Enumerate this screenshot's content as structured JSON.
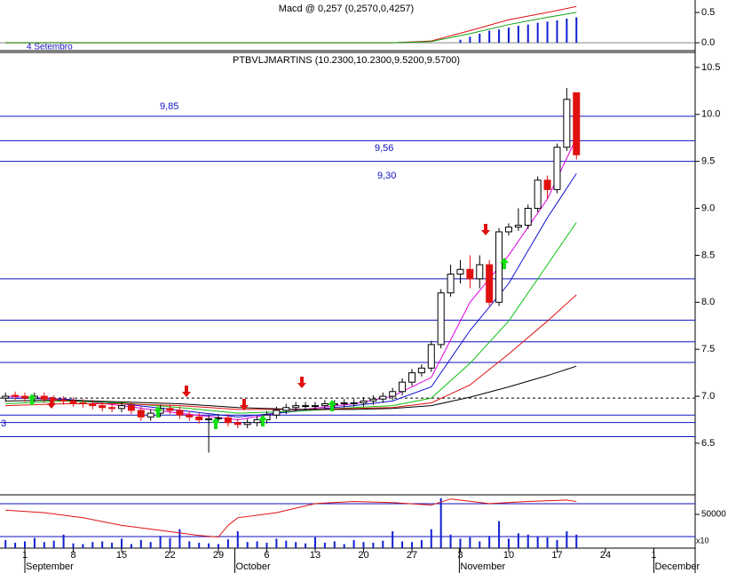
{
  "chart_data": {
    "type": "candlestick",
    "title": "PTBVLJMARTINS (10.2300,10.2300,9.5200,9.5700)",
    "top_title": "Macd @ 0,257 (0,2570,0,4257)",
    "top_label": "4 Setembro",
    "x": [
      -2,
      -1,
      0,
      1,
      2,
      3,
      4,
      5,
      6,
      7,
      8,
      9,
      10,
      11,
      12,
      13,
      14,
      15,
      16,
      17,
      18,
      19,
      20,
      21,
      22,
      23,
      24,
      25,
      26,
      27,
      28,
      29,
      30,
      31,
      32,
      33,
      34,
      35,
      36,
      37,
      38,
      39,
      40,
      41,
      42,
      43,
      44,
      45,
      46,
      47,
      48,
      49,
      50,
      51,
      52,
      53,
      54,
      55,
      56,
      57
    ],
    "open": [
      6.98,
      7.01,
      7.0,
      6.98,
      7.0,
      6.97,
      6.96,
      6.95,
      6.93,
      6.92,
      6.9,
      6.88,
      6.87,
      6.9,
      6.85,
      6.78,
      6.82,
      6.87,
      6.85,
      6.8,
      6.78,
      6.75,
      6.76,
      6.77,
      6.72,
      6.7,
      6.72,
      6.75,
      6.8,
      6.85,
      6.88,
      6.9,
      6.9,
      6.9,
      6.92,
      6.92,
      6.93,
      6.93,
      6.95,
      6.97,
      7.0,
      7.05,
      7.15,
      7.25,
      7.3,
      7.55,
      8.1,
      8.3,
      8.35,
      8.25,
      8.4,
      8.0,
      8.75,
      8.8,
      8.82,
      9.0,
      9.3,
      9.2,
      9.65,
      10.23
    ],
    "high": [
      7.04,
      7.05,
      7.04,
      7.04,
      7.04,
      7.01,
      7.0,
      6.99,
      6.97,
      6.96,
      6.94,
      6.92,
      6.94,
      6.94,
      6.89,
      6.86,
      6.91,
      6.91,
      6.89,
      6.84,
      6.82,
      6.8,
      6.81,
      6.81,
      6.76,
      6.76,
      6.79,
      6.84,
      6.89,
      6.92,
      6.94,
      6.94,
      6.94,
      6.96,
      6.96,
      6.97,
      6.97,
      6.99,
      7.01,
      7.04,
      7.09,
      7.19,
      7.29,
      7.34,
      7.59,
      8.14,
      8.4,
      8.45,
      8.5,
      8.5,
      8.45,
      8.79,
      8.84,
      9.0,
      9.04,
      9.34,
      9.35,
      9.69,
      10.28,
      10.23
    ],
    "low": [
      6.94,
      6.96,
      6.94,
      6.94,
      6.93,
      6.92,
      6.91,
      6.89,
      6.88,
      6.86,
      6.84,
      6.83,
      6.83,
      6.81,
      6.74,
      6.74,
      6.78,
      6.81,
      6.76,
      6.74,
      6.71,
      6.4,
      6.72,
      6.68,
      6.66,
      6.66,
      6.68,
      6.71,
      6.76,
      6.81,
      6.84,
      6.86,
      6.86,
      6.86,
      6.88,
      6.88,
      6.89,
      6.89,
      6.91,
      6.93,
      6.96,
      7.01,
      7.11,
      7.21,
      7.26,
      7.51,
      8.06,
      8.2,
      8.15,
      8.15,
      7.96,
      7.96,
      8.71,
      8.76,
      8.78,
      8.96,
      9.1,
      9.16,
      9.61,
      9.52
    ],
    "close": [
      7.0,
      7.0,
      6.98,
      7.0,
      6.97,
      6.96,
      6.95,
      6.93,
      6.92,
      6.9,
      6.88,
      6.87,
      6.9,
      6.85,
      6.78,
      6.82,
      6.87,
      6.85,
      6.8,
      6.78,
      6.75,
      6.76,
      6.77,
      6.72,
      6.7,
      6.72,
      6.75,
      6.8,
      6.85,
      6.88,
      6.9,
      6.9,
      6.9,
      6.92,
      6.92,
      6.93,
      6.93,
      6.95,
      6.97,
      7.0,
      7.05,
      7.15,
      7.25,
      7.3,
      7.55,
      8.1,
      8.3,
      8.35,
      8.25,
      8.4,
      8.0,
      8.75,
      8.8,
      8.82,
      9.0,
      9.3,
      9.2,
      9.65,
      10.16,
      9.57
    ],
    "up_color": "#ffffff",
    "down_color": "#e01010",
    "volume": [
      12000,
      8000,
      10000,
      15000,
      9000,
      11000,
      20000,
      7000,
      6000,
      9000,
      10000,
      8000,
      14000,
      6000,
      12000,
      9000,
      18000,
      15000,
      28000,
      10000,
      8000,
      7000,
      6000,
      13000,
      25000,
      9000,
      10000,
      8000,
      14000,
      11000,
      9000,
      7000,
      16000,
      8000,
      10000,
      6000,
      12000,
      9000,
      8000,
      11000,
      25000,
      10000,
      9000,
      12000,
      28000,
      74000,
      20000,
      14000,
      16000,
      10000,
      18000,
      40000,
      14000,
      22000,
      20000,
      17000,
      16000,
      12000,
      25000,
      20000
    ],
    "volume_color": "#1020d0",
    "xlim": [
      -2.57,
      69.27
    ],
    "xticks": [
      {
        "value": 0,
        "label": "1"
      },
      {
        "value": 5,
        "label": "8"
      },
      {
        "value": 10,
        "label": "15"
      },
      {
        "value": 15,
        "label": "22"
      },
      {
        "value": 20,
        "label": "29"
      },
      {
        "value": 25,
        "label": "6"
      },
      {
        "value": 30,
        "label": "13"
      },
      {
        "value": 35,
        "label": "20"
      },
      {
        "value": 40,
        "label": "27"
      },
      {
        "value": 45,
        "label": "3"
      },
      {
        "value": 50,
        "label": "10"
      },
      {
        "value": 55,
        "label": "17"
      },
      {
        "value": 60,
        "label": "24"
      },
      {
        "value": 65,
        "label": "1"
      }
    ],
    "months": [
      {
        "value": 0,
        "label": "September"
      },
      {
        "value": 21.7,
        "label": "October"
      },
      {
        "value": 44.9,
        "label": "November"
      },
      {
        "value": 65,
        "label": "December"
      }
    ],
    "ylim": [
      5.97,
      10.65
    ],
    "yticks": [
      6.5,
      {
        "value": 7,
        "label": "7.0"
      },
      7.5,
      {
        "value": 8,
        "label": "8.0"
      },
      8.5,
      {
        "value": 9,
        "label": "9.0"
      },
      9.5,
      {
        "value": 10,
        "label": "10.0"
      },
      10.5
    ],
    "levels": [
      9.98,
      9.72,
      9.5,
      8.25,
      7.81,
      7.58,
      7.36,
      6.8,
      6.72,
      6.57
    ],
    "level_color": "#1010c0",
    "level_labels": [
      "9,85",
      "9,56",
      "9,30",
      "3"
    ],
    "dashed_level": 6.98,
    "moving_averages": {
      "x": [
        -2,
        4,
        10,
        16,
        22,
        28,
        34,
        38,
        42,
        46,
        50,
        54,
        57
      ],
      "series": [
        {
          "color": "#e000e0",
          "values": [
            7.0,
            6.97,
            6.9,
            6.82,
            6.75,
            6.85,
            6.92,
            7.0,
            7.2,
            8.0,
            8.5,
            9.1,
            9.75
          ]
        },
        {
          "color": "#1010d0",
          "values": [
            6.98,
            6.97,
            6.92,
            6.85,
            6.78,
            6.84,
            6.9,
            6.95,
            7.1,
            7.7,
            8.2,
            8.9,
            9.37
          ]
        },
        {
          "color": "#10c010",
          "values": [
            6.92,
            6.95,
            6.93,
            6.88,
            6.82,
            6.84,
            6.88,
            6.9,
            6.98,
            7.35,
            7.8,
            8.4,
            8.85
          ]
        },
        {
          "color": "#e01010",
          "values": [
            6.9,
            6.92,
            6.92,
            6.9,
            6.86,
            6.86,
            6.87,
            6.88,
            6.93,
            7.12,
            7.45,
            7.8,
            8.08
          ]
        },
        {
          "color": "#000000",
          "values": [
            6.95,
            6.96,
            6.94,
            6.92,
            6.88,
            6.86,
            6.86,
            6.87,
            6.9,
            6.99,
            7.1,
            7.22,
            7.32
          ]
        }
      ]
    },
    "top_ylim": [
      -0.13,
      0.706
    ],
    "top_yticks": [
      {
        "value": 0,
        "label": "0.0"
      },
      {
        "value": 0.5,
        "label": "0.5"
      }
    ],
    "top_lines": {
      "x": [
        -2,
        38,
        42,
        46,
        50,
        54,
        57
      ],
      "series": [
        {
          "color": "#e01010",
          "values": [
            0,
            0,
            0.03,
            0.2,
            0.38,
            0.5,
            0.6
          ]
        },
        {
          "color": "#10a010",
          "values": [
            0,
            0,
            0.02,
            0.15,
            0.3,
            0.42,
            0.5
          ]
        }
      ]
    },
    "top_bars": {
      "x": [
        45,
        46,
        47,
        48,
        49,
        50,
        51,
        52,
        53,
        54,
        55,
        56,
        57
      ],
      "values": [
        0.05,
        0.1,
        0.15,
        0.2,
        0.22,
        0.25,
        0.28,
        0.3,
        0.33,
        0.35,
        0.37,
        0.4,
        0.42
      ],
      "color": "#1020d0"
    },
    "bottom_ylim": [
      0,
      75000
    ],
    "bottom_yticks": [
      50000
    ],
    "bottom_unit": "x10",
    "oscillator": {
      "x": [
        -2,
        2,
        6,
        10,
        14,
        18,
        20,
        21,
        22,
        26,
        30,
        34,
        38,
        42,
        44,
        48,
        52,
        56,
        57
      ],
      "values": [
        75,
        70,
        60,
        45,
        35,
        25,
        22,
        45,
        60,
        70,
        88,
        92,
        90,
        85,
        97,
        88,
        92,
        95,
        92
      ],
      "color": "#e01010"
    },
    "y2lim": [
      0,
      100
    ]
  }
}
